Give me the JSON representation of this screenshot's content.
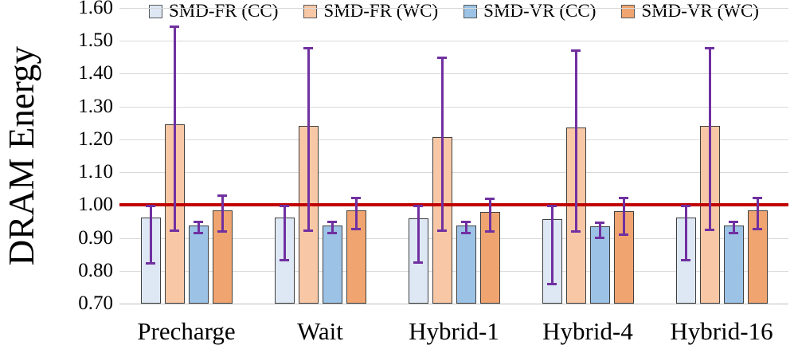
{
  "chart_data": {
    "type": "bar",
    "title": "",
    "xlabel": "",
    "ylabel": "DRAM Energy",
    "categories": [
      "Precharge",
      "Wait",
      "Hybrid-1",
      "Hybrid-4",
      "Hybrid-16"
    ],
    "series": [
      {
        "name": "SMD-FR (CC)",
        "color": "#dde8f4",
        "values": [
          0.961,
          0.961,
          0.96,
          0.957,
          0.961
        ],
        "err_low": [
          0.818,
          0.829,
          0.821,
          0.755,
          0.828
        ],
        "err_high": [
          1.0,
          1.0,
          1.0,
          1.0,
          1.0
        ]
      },
      {
        "name": "SMD-FR (WC)",
        "color": "#f8c8a6",
        "values": [
          1.246,
          1.242,
          1.207,
          1.235,
          1.242
        ],
        "err_low": [
          0.919,
          0.919,
          0.919,
          0.917,
          0.92
        ],
        "err_high": [
          1.546,
          1.481,
          1.451,
          1.473,
          1.48
        ]
      },
      {
        "name": "SMD-VR (CC)",
        "color": "#9cc3e6",
        "values": [
          0.937,
          0.937,
          0.937,
          0.935,
          0.937
        ],
        "err_low": [
          0.911,
          0.912,
          0.912,
          0.896,
          0.912
        ],
        "err_high": [
          0.952,
          0.952,
          0.952,
          0.951,
          0.952
        ]
      },
      {
        "name": "SMD-VR (WC)",
        "color": "#f0a571",
        "values": [
          0.983,
          0.985,
          0.978,
          0.982,
          0.985
        ],
        "err_low": [
          0.915,
          0.924,
          0.917,
          0.907,
          0.923
        ],
        "err_high": [
          1.033,
          1.024,
          1.023,
          1.024,
          1.026
        ]
      }
    ],
    "ylim": [
      0.7,
      1.6
    ],
    "yticks": [
      1.6,
      1.5,
      1.4,
      1.3,
      1.2,
      1.1,
      1.0,
      0.9,
      0.8,
      0.7
    ],
    "ytick_labels": [
      "1.60",
      "1.50",
      "1.40",
      "1.30",
      "1.20",
      "1.10",
      "1.00",
      "0.90",
      "0.80",
      "0.70"
    ],
    "grid": true,
    "legend_position": "top",
    "ref_line": {
      "value": 1.0,
      "color": "#c00000"
    },
    "error_bar_color": "#7030a0"
  }
}
